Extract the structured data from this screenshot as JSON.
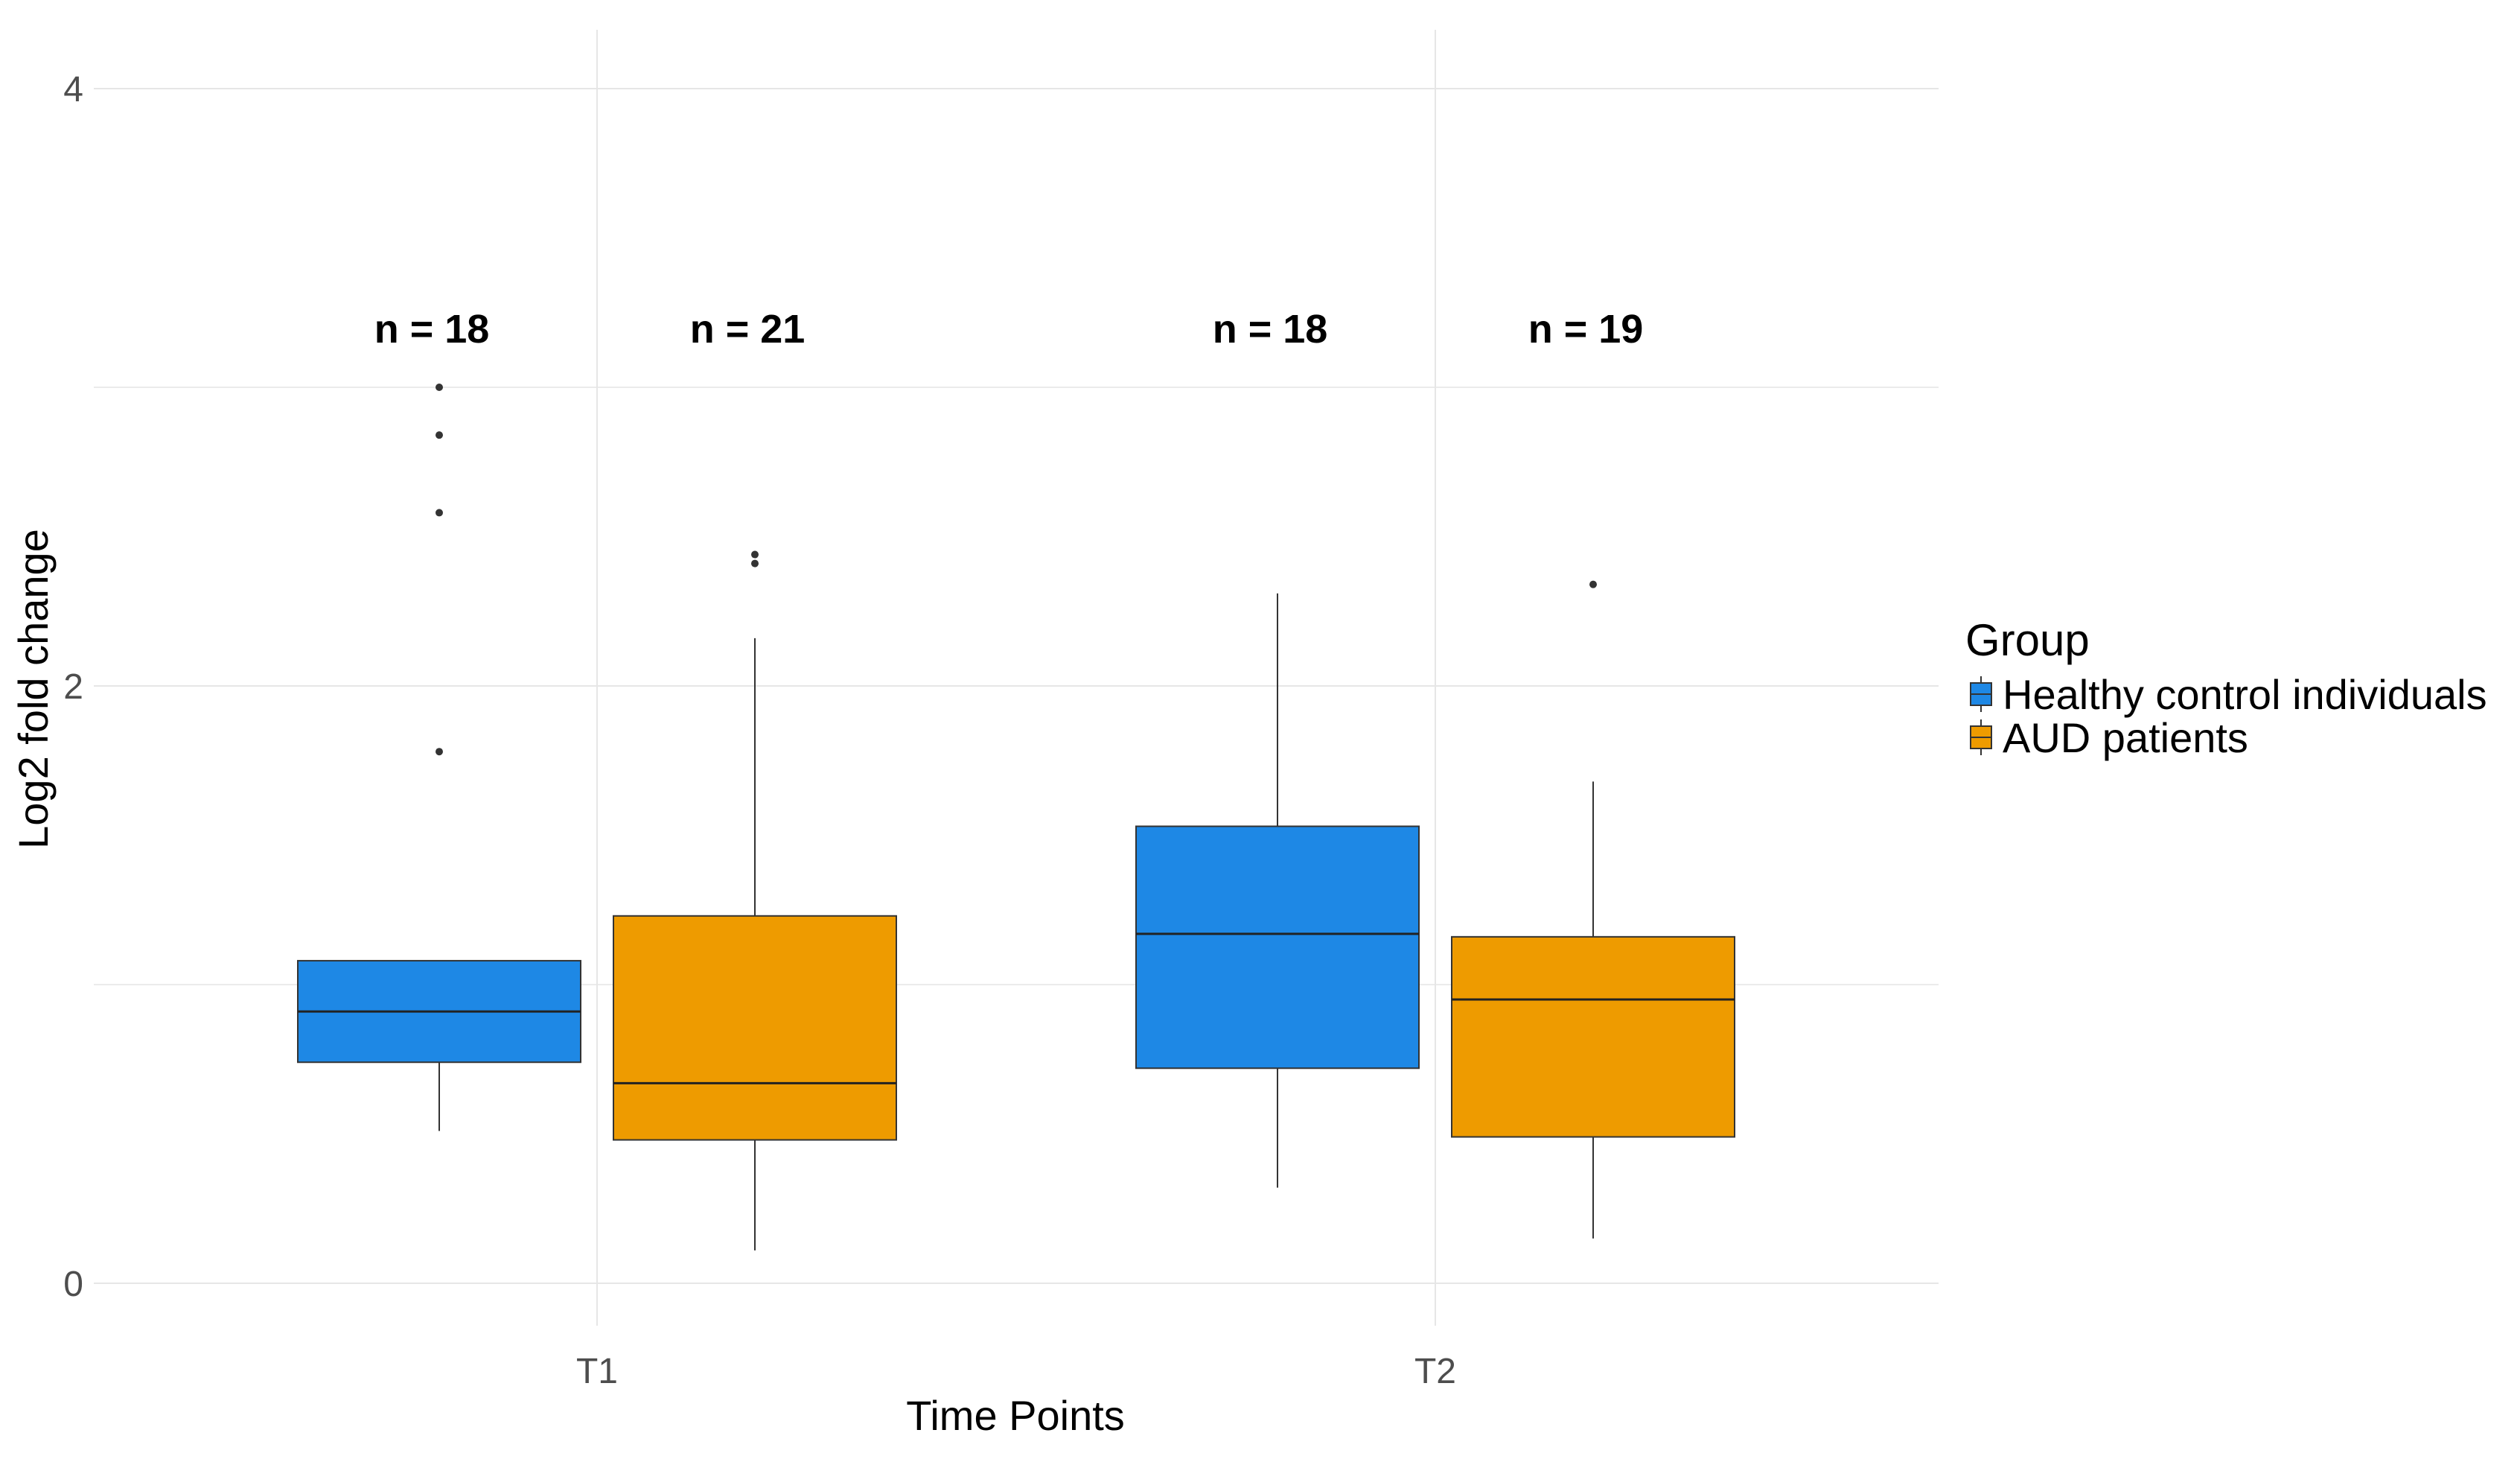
{
  "chart_data": {
    "type": "boxplot",
    "xlabel": "Time Points",
    "ylabel": "Log2 fold change",
    "ylim": [
      -0.1,
      4.2
    ],
    "yticks": [
      "0",
      "2",
      "4"
    ],
    "categories": [
      "T1",
      "T2"
    ],
    "grid": true,
    "legend": {
      "title": "Group",
      "position": "right",
      "entries": [
        "Healthy control individuals",
        "AUD patients"
      ]
    },
    "series": [
      {
        "name": "Healthy control individuals",
        "color": "#1E88E5",
        "boxes": [
          {
            "category": "T1",
            "n_label": "n = 18",
            "q1": 0.74,
            "median": 0.91,
            "q3": 1.08,
            "whisker_low": 0.51,
            "whisker_high": 1.08,
            "outliers": [
              1.78,
              2.58,
              2.84,
              3.0
            ]
          },
          {
            "category": "T2",
            "n_label": "n = 18",
            "q1": 0.72,
            "median": 1.17,
            "q3": 1.53,
            "whisker_low": 0.32,
            "whisker_high": 2.31,
            "outliers": []
          }
        ]
      },
      {
        "name": "AUD patients",
        "color": "#EE9B00",
        "boxes": [
          {
            "category": "T1",
            "n_label": "n = 21",
            "q1": 0.48,
            "median": 0.67,
            "q3": 1.23,
            "whisker_low": 0.11,
            "whisker_high": 2.16,
            "outliers": [
              2.41,
              2.44
            ]
          },
          {
            "category": "T2",
            "n_label": "n = 19",
            "q1": 0.49,
            "median": 0.95,
            "q3": 1.16,
            "whisker_low": 0.15,
            "whisker_high": 1.68,
            "outliers": [
              2.34
            ]
          }
        ]
      }
    ]
  }
}
